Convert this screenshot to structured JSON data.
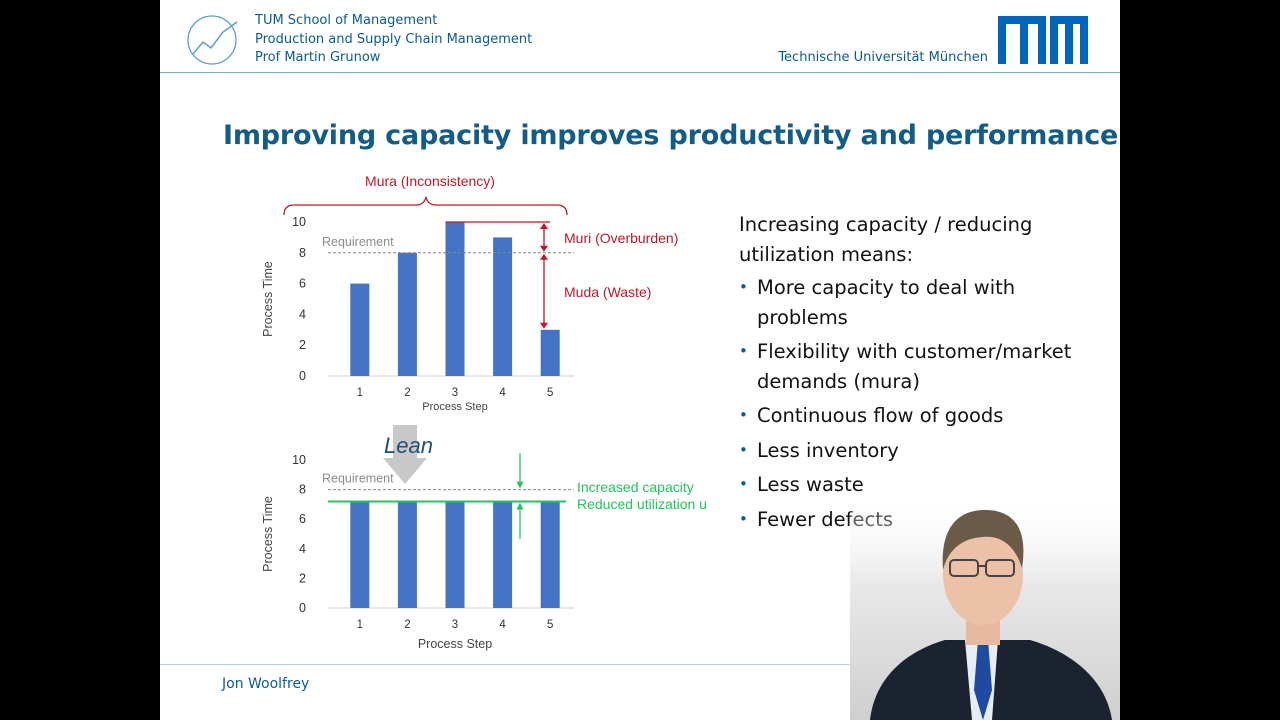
{
  "header": {
    "lines": [
      "TUM School of Management",
      "Production and Supply Chain Management",
      "Prof Martin Grunow"
    ],
    "university": "Technische Universität München",
    "logo_text": "TUM"
  },
  "title": "Improving capacity improves productivity and performance",
  "chart_data": [
    {
      "type": "bar",
      "categories": [
        "1",
        "2",
        "3",
        "4",
        "5"
      ],
      "values": [
        6,
        8,
        10,
        9,
        3
      ],
      "xlabel": "Process Step",
      "ylabel": "Process Time",
      "ylim": [
        0,
        10
      ],
      "yticks": [
        "0",
        "2",
        "4",
        "6",
        "8",
        "10"
      ],
      "requirement": {
        "label": "Requirement",
        "value": 8
      },
      "annotations": {
        "brace_label": "Mura (Inconsistency)",
        "muri": "Muri (Overburden)",
        "muda": "Muda (Waste)"
      },
      "bar_color": "#4472c4",
      "annotation_color": "#c0182a"
    },
    {
      "type": "bar",
      "categories": [
        "1",
        "2",
        "3",
        "4",
        "5"
      ],
      "values": [
        7.2,
        7.2,
        7.2,
        7.2,
        7.2
      ],
      "xlabel": "Process Step",
      "ylabel": "Process Time",
      "ylim": [
        0,
        10
      ],
      "yticks": [
        "0",
        "2",
        "4",
        "6",
        "8",
        "10"
      ],
      "requirement": {
        "label": "Requirement",
        "value": 8
      },
      "level_line": 7.2,
      "arrow_label": "Lean",
      "annotations": {
        "capacity": "Increased capacity",
        "utilization": "Reduced utilization u"
      },
      "bar_color": "#4472c4",
      "annotation_color": "#22c55e"
    }
  ],
  "bullets": {
    "lead": "Increasing capacity / reducing utilization means:",
    "items": [
      "More capacity to deal with problems",
      "Flexibility with customer/market demands (mura)",
      "Continuous flow of goods",
      "Less inventory",
      "Less waste",
      "Fewer defects"
    ]
  },
  "footer": {
    "name": "Jon Woolfrey"
  },
  "colors": {
    "tum_blue": "#0065bd",
    "title": "#125d88",
    "header_text": "#0a5c8f"
  }
}
